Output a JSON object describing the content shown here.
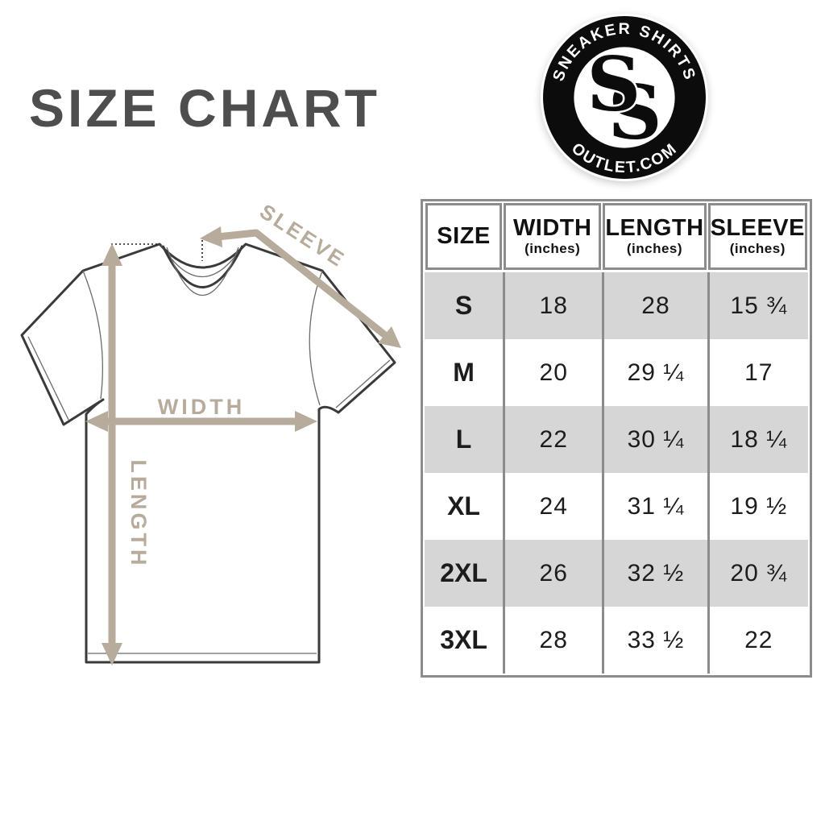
{
  "title": "SIZE CHART",
  "logo": {
    "arc_top_text": "SNEAKER SHIRTS",
    "arc_bottom_text": "OUTLET.COM",
    "monogram": "SS",
    "ring_color": "#0c0c0c",
    "text_color": "#ffffff"
  },
  "diagram": {
    "sleeve_label": "SLEEVE",
    "width_label": "WIDTH",
    "length_label": "LENGTH",
    "accent_color": "#b7ab9c",
    "outline_color": "#3a3a3a"
  },
  "table": {
    "columns": [
      {
        "key": "size",
        "label": "SIZE",
        "sublabel": ""
      },
      {
        "key": "width",
        "label": "WIDTH",
        "sublabel": "(inches)"
      },
      {
        "key": "length",
        "label": "LENGTH",
        "sublabel": "(inches)"
      },
      {
        "key": "sleeve",
        "label": "SLEEVE",
        "sublabel": "(inches)"
      }
    ],
    "rows": [
      {
        "size": "S",
        "width": "18",
        "length": "28",
        "sleeve": "15 ¾"
      },
      {
        "size": "M",
        "width": "20",
        "length": "29 ¼",
        "sleeve": "17"
      },
      {
        "size": "L",
        "width": "22",
        "length": "30 ¼",
        "sleeve": "18 ¼"
      },
      {
        "size": "XL",
        "width": "24",
        "length": "31 ¼",
        "sleeve": "19 ½"
      },
      {
        "size": "2XL",
        "width": "26",
        "length": "32 ½",
        "sleeve": "20 ¾"
      },
      {
        "size": "3XL",
        "width": "28",
        "length": "33 ½",
        "sleeve": "22"
      }
    ],
    "colors": {
      "border": "#8c8c8c",
      "alt_row": "#d6d6d6",
      "text": "#111111"
    }
  }
}
